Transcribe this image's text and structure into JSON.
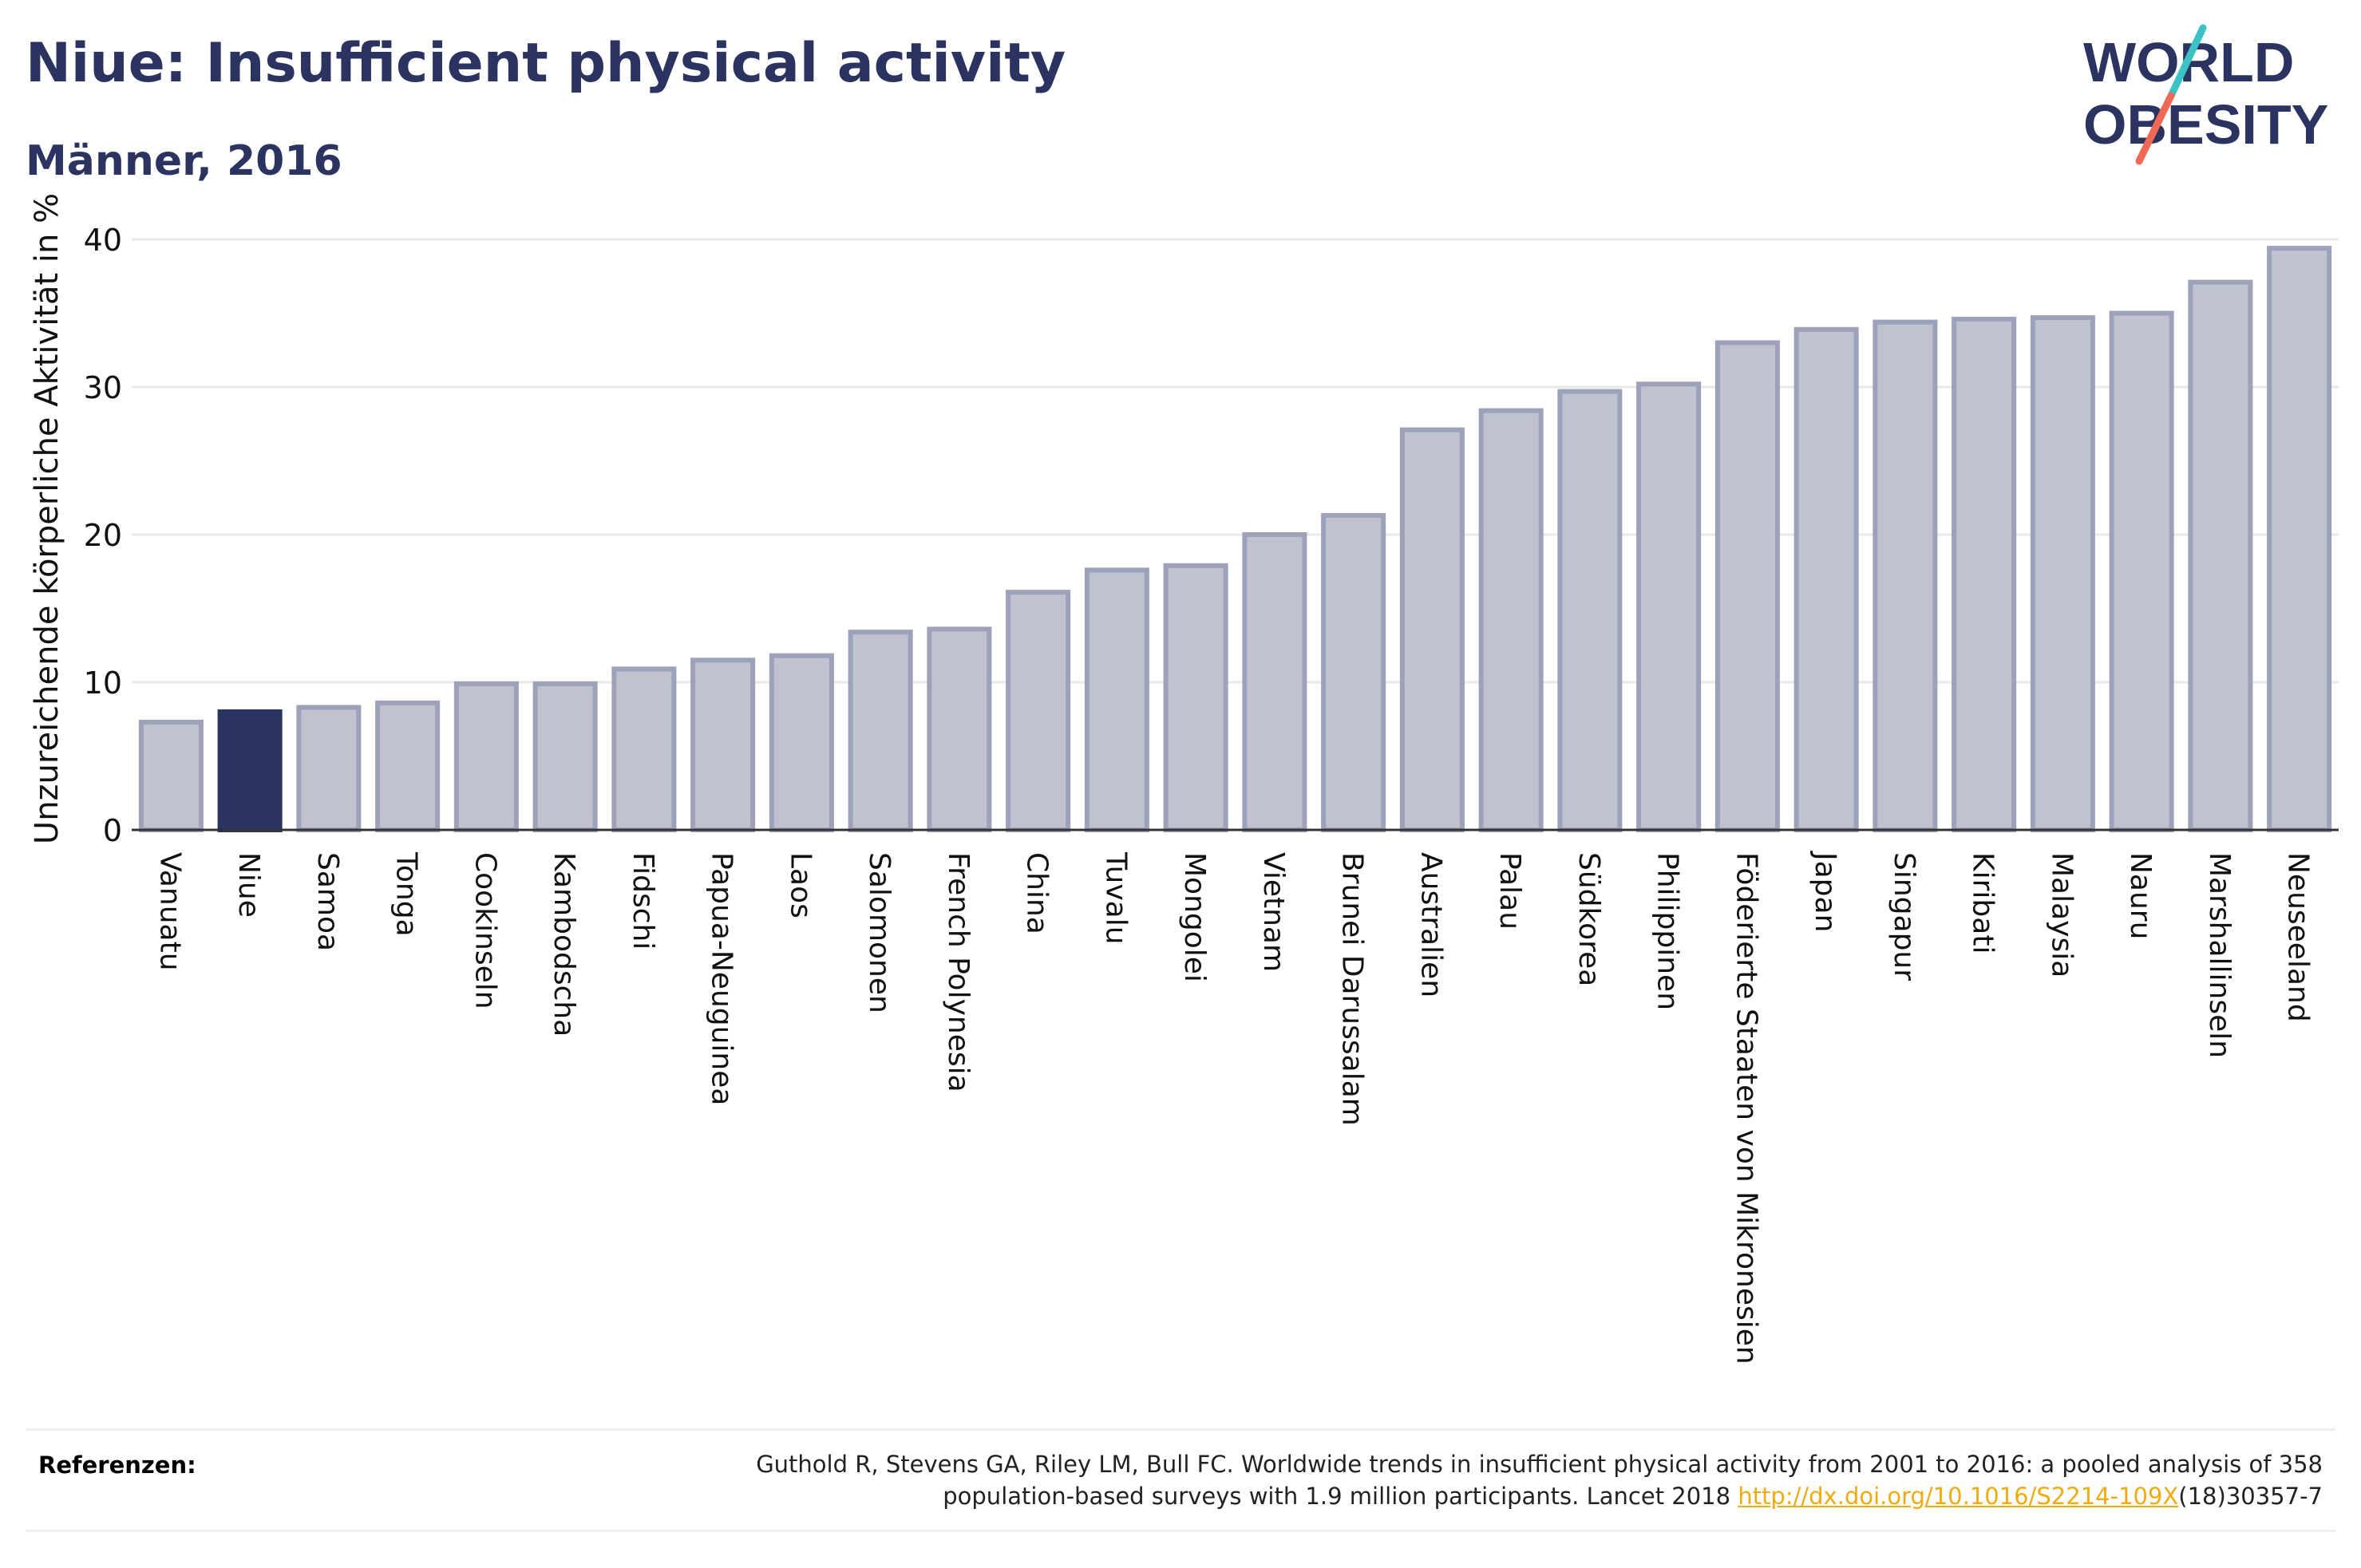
{
  "header": {
    "title": "Niue: Insufficient physical activity",
    "subtitle": "Männer, 2016"
  },
  "logo": {
    "line1": "WORLD",
    "line2": "OBESITY"
  },
  "chart_data": {
    "type": "bar",
    "ylabel": "Unzureichende körperliche Aktivität in %",
    "ylim": [
      0,
      40
    ],
    "yticks": [
      0,
      10,
      20,
      30,
      40
    ],
    "grid": true,
    "highlight": "Niue",
    "colors": {
      "bar": "#bfc2cf",
      "bar_border": "#9da2ba",
      "highlight": "#2b3461"
    },
    "categories": [
      "Vanuatu",
      "Niue",
      "Samoa",
      "Tonga",
      "Cookinseln",
      "Kambodscha",
      "Fidschi",
      "Papua-Neuguinea",
      "Laos",
      "Salomonen",
      "French Polynesia",
      "China",
      "Tuvalu",
      "Mongolei",
      "Vietnam",
      "Brunei Darussalam",
      "Australien",
      "Palau",
      "Südkorea",
      "Philippinen",
      "Föderierte Staaten von Mikronesien",
      "Japan",
      "Singapur",
      "Kiribati",
      "Malaysia",
      "Nauru",
      "Marshallinseln",
      "Neuseeland"
    ],
    "values": [
      7.3,
      8.0,
      8.3,
      8.6,
      9.9,
      9.9,
      10.9,
      11.5,
      11.8,
      13.4,
      13.6,
      16.1,
      17.6,
      17.9,
      20.0,
      21.3,
      27.1,
      28.4,
      29.7,
      30.2,
      33.0,
      33.9,
      34.4,
      34.6,
      34.7,
      35.0,
      37.1,
      39.4
    ]
  },
  "references": {
    "label": "Referenzen:",
    "text_line1": "Guthold R, Stevens GA, Riley LM, Bull FC. Worldwide trends in insufficient physical activity from 2001 to 2016: a pooled analysis of 358",
    "text_line2_prefix": "population-based surveys with 1.9 million participants. Lancet 2018 ",
    "link": "http://dx.doi.org/10.1016/S2214-109X",
    "text_line2_suffix": "(18)30357-7"
  }
}
